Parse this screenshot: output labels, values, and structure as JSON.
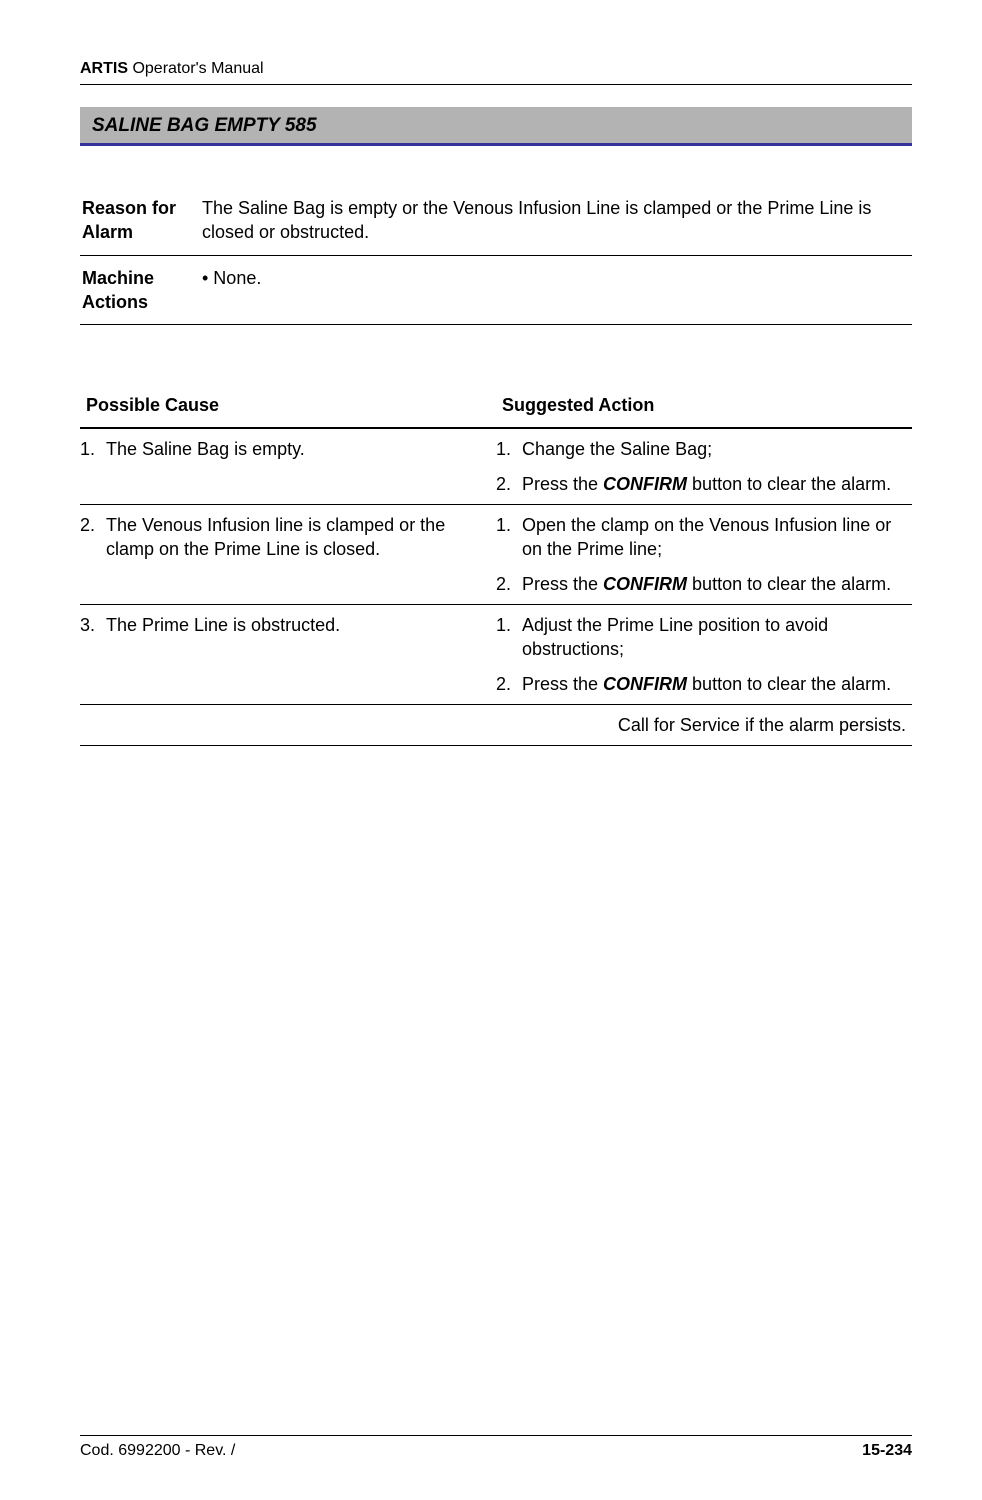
{
  "header": {
    "product": "ARTIS",
    "manual": " Operator's Manual"
  },
  "section": {
    "title": "SALINE BAG EMPTY 585"
  },
  "definitions": [
    {
      "label": "Reason for Alarm",
      "text": "The Saline Bag is empty or the Venous Infusion Line is clamped or the Prime Line is closed or obstructed."
    },
    {
      "label": "Machine Actions",
      "text": "• None."
    }
  ],
  "causeTable": {
    "headers": {
      "cause": "Possible Cause",
      "action": "Suggested Action"
    },
    "rows": [
      {
        "cause": [
          {
            "n": "1.",
            "t": "The Saline Bag is empty."
          }
        ],
        "actions": [
          {
            "n": "1.",
            "t": "Change the Saline Bag;"
          },
          {
            "n": "2.",
            "pre": "Press the ",
            "bold": "CONFIRM",
            "post": " button to clear the alarm."
          }
        ]
      },
      {
        "cause": [
          {
            "n": "2.",
            "t": "The Venous Infusion line is clamped or the clamp on the Prime Line is closed."
          }
        ],
        "actions": [
          {
            "n": "1.",
            "t": "Open the clamp on the Venous Infusion line or on the Prime line;"
          },
          {
            "n": "2.",
            "pre": "Press the ",
            "bold": "CONFIRM",
            "post": " button to clear the alarm."
          }
        ]
      },
      {
        "cause": [
          {
            "n": "3.",
            "t": "The Prime Line is obstructed."
          }
        ],
        "actions": [
          {
            "n": "1.",
            "t": "Adjust the Prime Line position to avoid obstructions;"
          },
          {
            "n": "2.",
            "pre": "Press the ",
            "bold": "CONFIRM",
            "post": " button to clear the alarm."
          }
        ]
      }
    ],
    "footerNote": "Call for Service if the alarm persists."
  },
  "footer": {
    "left": "Cod. 6992200 - Rev. /",
    "right": "15-234"
  }
}
